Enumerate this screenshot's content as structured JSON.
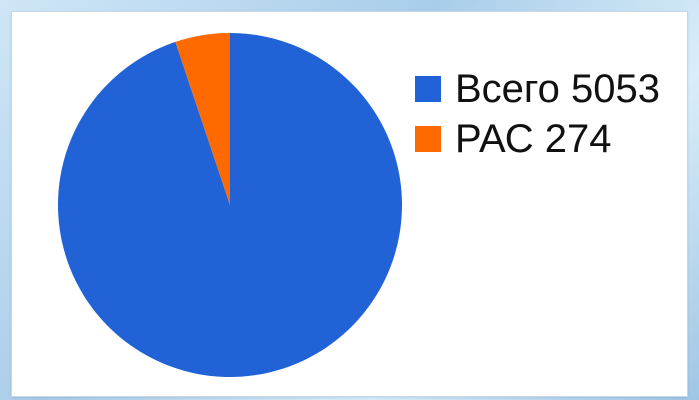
{
  "chart_data": {
    "type": "pie",
    "categories": [
      "Всего",
      "РАС"
    ],
    "values": [
      5053,
      274
    ],
    "colors": [
      "#2163d6",
      "#ff6a00"
    ],
    "legend_position": "top-right",
    "legend": [
      {
        "label": "Всего 5053"
      },
      {
        "label": "РАС 274"
      }
    ]
  }
}
